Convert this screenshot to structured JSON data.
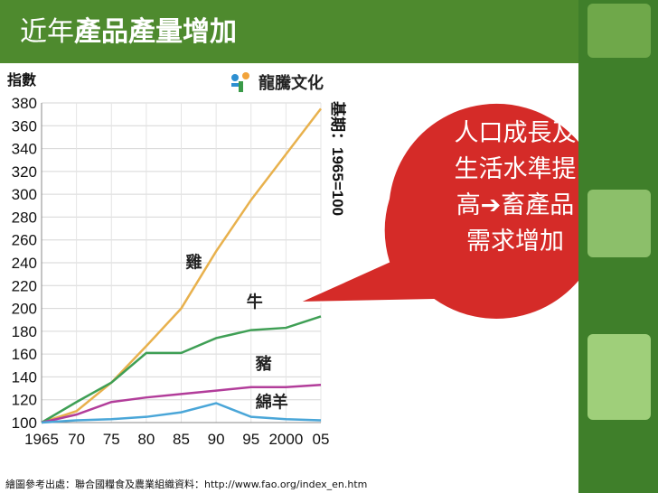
{
  "slide": {
    "title_prefix": "近年",
    "title_main": "產品產量增加",
    "brand": "龍騰文化",
    "source": "繪圖參考出處：聯合國糧食及農業組織資料：http://www.fao.org/index_en.htm",
    "callout": [
      "人口成長及",
      "生活水準提",
      "高➔畜產品",
      "需求增加"
    ]
  },
  "colors": {
    "title_bar": "#4e8a2e",
    "callout": "#d52b28",
    "chicken": "#e8b14d",
    "cattle": "#3f9f55",
    "pig": "#b23d9a",
    "sheep": "#4aa6d8"
  },
  "chart_data": {
    "type": "line",
    "ylabel": "指數",
    "base_note": "基期：1965=100",
    "x": [
      1965,
      1970,
      1975,
      1980,
      1985,
      1990,
      1995,
      2000,
      2005
    ],
    "xtick_labels": [
      "1965",
      "70",
      "75",
      "80",
      "85",
      "90",
      "95",
      "2000",
      "05"
    ],
    "ylim": [
      100,
      380
    ],
    "yticks": [
      100,
      120,
      140,
      160,
      180,
      200,
      220,
      240,
      260,
      280,
      300,
      320,
      340,
      360,
      380
    ],
    "grid": true,
    "series": [
      {
        "name": "雞",
        "color": "#e8b14d",
        "values": [
          100,
          110,
          135,
          167,
          200,
          250,
          295,
          335,
          375
        ]
      },
      {
        "name": "牛",
        "color": "#3f9f55",
        "values": [
          100,
          118,
          135,
          161,
          161,
          174,
          181,
          183,
          193
        ]
      },
      {
        "name": "豬",
        "color": "#b23d9a",
        "values": [
          100,
          107,
          118,
          122,
          125,
          128,
          131,
          131,
          133
        ]
      },
      {
        "name": "綿羊",
        "color": "#4aa6d8",
        "values": [
          100,
          102,
          103,
          105,
          109,
          117,
          105,
          103,
          102
        ]
      }
    ]
  }
}
